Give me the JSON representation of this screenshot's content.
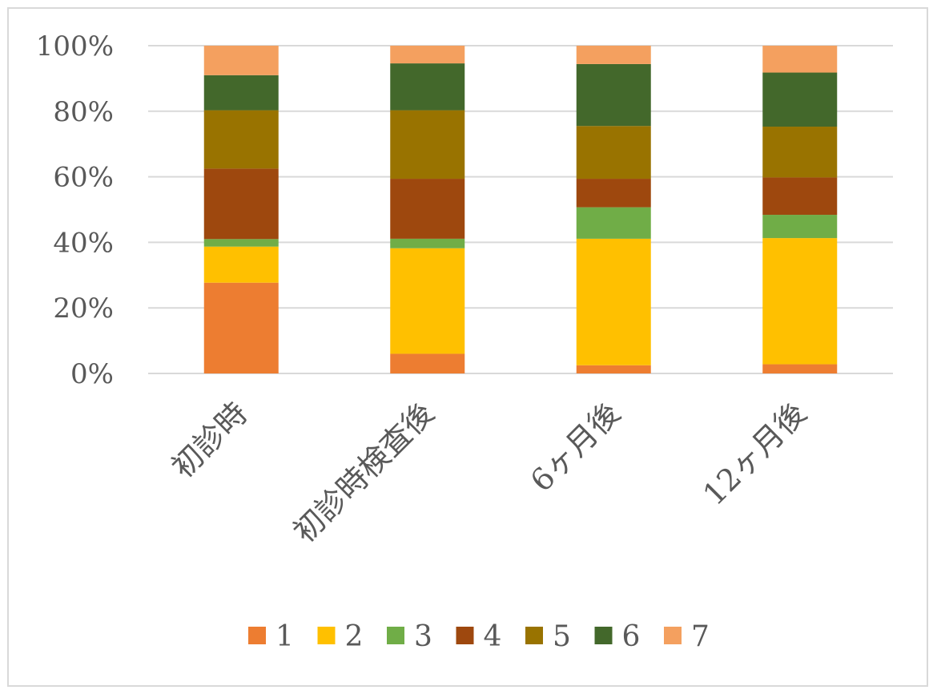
{
  "chart_data": {
    "type": "bar",
    "stacked": true,
    "percent": true,
    "title": "",
    "xlabel": "",
    "ylabel": "",
    "ylim": [
      0,
      100
    ],
    "yticks": [
      "0%",
      "20%",
      "40%",
      "60%",
      "80%",
      "100%"
    ],
    "categories": [
      "初診時",
      "初診時検査後",
      "6ヶ月後",
      "12ヶ月後"
    ],
    "series": [
      {
        "name": "1",
        "color": "#ED7D31",
        "values": [
          27.7,
          6.0,
          2.5,
          2.8
        ]
      },
      {
        "name": "2",
        "color": "#FFC000",
        "values": [
          11.0,
          32.2,
          38.6,
          38.5
        ]
      },
      {
        "name": "3",
        "color": "#70AD47",
        "values": [
          2.3,
          2.9,
          9.6,
          7.1
        ]
      },
      {
        "name": "4",
        "color": "#9E480E",
        "values": [
          21.5,
          18.3,
          8.7,
          11.4
        ]
      },
      {
        "name": "5",
        "color": "#997300",
        "values": [
          17.8,
          20.9,
          16.1,
          15.5
        ]
      },
      {
        "name": "6",
        "color": "#43682B",
        "values": [
          10.7,
          14.3,
          18.9,
          16.5
        ]
      },
      {
        "name": "7",
        "color": "#F4A05F",
        "values": [
          9.0,
          5.4,
          5.6,
          8.2
        ]
      }
    ],
    "grid": true,
    "legend": "bottom"
  }
}
